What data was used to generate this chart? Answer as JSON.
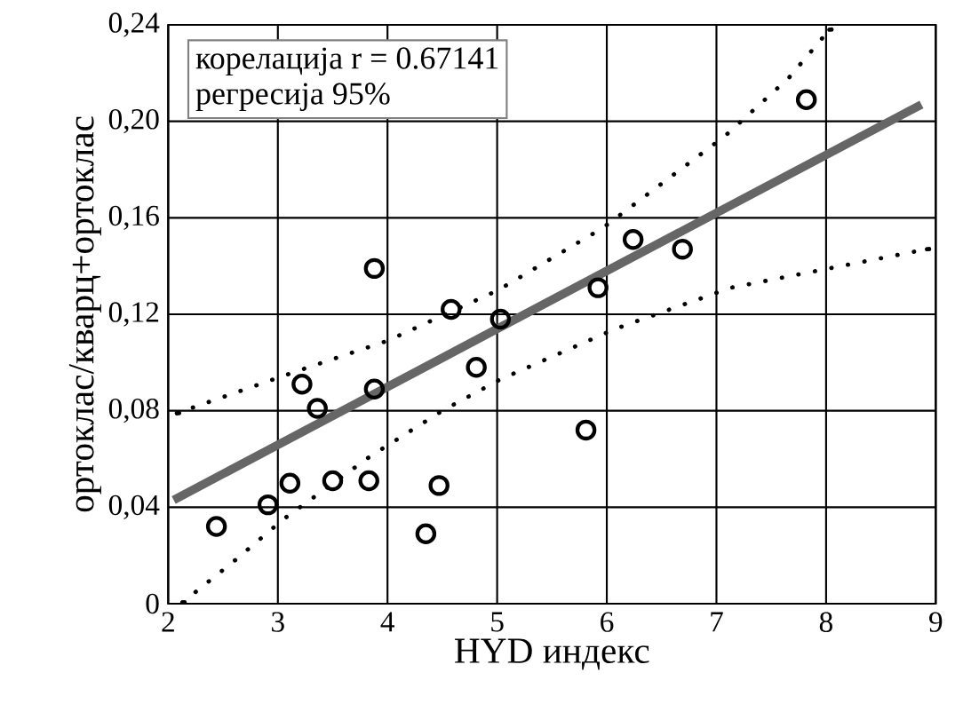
{
  "chart_data": {
    "type": "scatter",
    "xlabel": "HYD индекс",
    "ylabel": "ортоклас/кварц+ортоклас",
    "annotations": [
      "корелација r = 0.67141",
      "регресија 95%"
    ],
    "xlim": [
      2,
      9
    ],
    "xticks": [
      2,
      3,
      4,
      5,
      6,
      7,
      8,
      9
    ],
    "ylim": [
      0,
      0.24
    ],
    "yticks": [
      0,
      {
        "value": 0.04,
        "label": "0,04"
      },
      {
        "value": 0.08,
        "label": "0,08"
      },
      {
        "value": 0.12,
        "label": "0,12"
      },
      {
        "value": 0.16,
        "label": "0,16"
      },
      {
        "value": 0.2,
        "label": "0,20"
      },
      {
        "value": 0.24,
        "label": "0,24"
      }
    ],
    "grid": true,
    "series": [
      {
        "marker": "circle",
        "color": "#000000",
        "x": [
          2.44,
          2.91,
          3.11,
          3.5,
          3.83,
          4.47,
          4.35,
          3.22,
          3.36,
          3.88,
          4.58,
          5.03,
          4.81,
          5.81,
          5.92,
          3.88,
          6.24,
          6.69,
          7.82
        ],
        "values": [
          0.032,
          0.041,
          0.05,
          0.051,
          0.051,
          0.049,
          0.029,
          0.091,
          0.081,
          0.089,
          0.122,
          0.118,
          0.098,
          0.072,
          0.131,
          0.139,
          0.151,
          0.147,
          0.209
        ]
      },
      {
        "type": "line",
        "marker": "none",
        "line_style": "solid",
        "color": "#666666",
        "x": [
          2.05,
          8.87
        ],
        "values": [
          0.043,
          0.207
        ]
      },
      {
        "type": "line",
        "marker": "none",
        "line_style": "dotted",
        "color": "#000000",
        "x": [
          2.08,
          3.18,
          4.0,
          5.01,
          5.97,
          7.08,
          7.66,
          8.03
        ],
        "values": [
          0.079,
          0.0965,
          0.109,
          0.13,
          0.156,
          0.194,
          0.218,
          0.238
        ]
      },
      {
        "type": "line",
        "marker": "none",
        "line_style": "dotted",
        "color": "#000000",
        "x": [
          2.13,
          2.61,
          3.05,
          3.84,
          4.5,
          5.03,
          6.08,
          7.13,
          8.92
        ],
        "values": [
          0.0005,
          0.018,
          0.035,
          0.061,
          0.08,
          0.093,
          0.114,
          0.131,
          0.147
        ]
      }
    ]
  }
}
